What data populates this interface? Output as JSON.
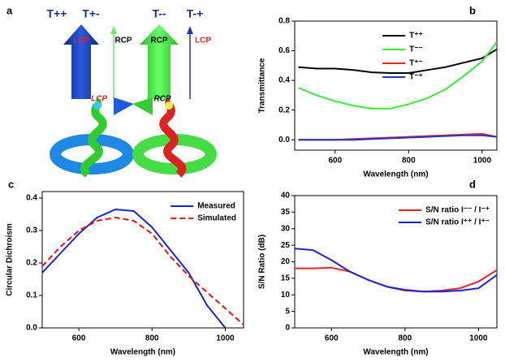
{
  "diagram": {
    "panel": "a",
    "headers": [
      "T++",
      "T+-",
      "T--",
      "T-+"
    ],
    "arrow_labels": [
      "LCP",
      "RCP",
      "RCP",
      "LCP"
    ],
    "helix_labels": [
      "LCP",
      "RCP"
    ]
  },
  "chart_data": [
    {
      "type": "line",
      "panel": "b",
      "xlabel": "Wavelength (nm)",
      "ylabel": "Transmittance",
      "x": [
        500,
        550,
        600,
        650,
        700,
        750,
        800,
        850,
        900,
        950,
        1000,
        1040
      ],
      "series": [
        {
          "name": "T⁺⁺",
          "color": "#000000",
          "values": [
            0.49,
            0.48,
            0.48,
            0.47,
            0.455,
            0.45,
            0.45,
            0.47,
            0.49,
            0.52,
            0.55,
            0.61
          ]
        },
        {
          "name": "T⁻⁻",
          "color": "#33ee33",
          "values": [
            0.35,
            0.3,
            0.26,
            0.23,
            0.21,
            0.21,
            0.24,
            0.28,
            0.34,
            0.43,
            0.53,
            0.66
          ]
        },
        {
          "name": "T⁺⁻",
          "color": "#ee2222",
          "values": [
            0,
            0,
            0,
            0.005,
            0.01,
            0.015,
            0.02,
            0.025,
            0.03,
            0.035,
            0.04,
            0.02
          ]
        },
        {
          "name": "T⁻⁺",
          "color": "#2233cc",
          "values": [
            0,
            0,
            0,
            0,
            0.005,
            0.01,
            0.015,
            0.02,
            0.025,
            0.03,
            0.03,
            0.02
          ]
        }
      ],
      "xlim": [
        490,
        1040
      ],
      "ylim": [
        -0.07,
        0.8
      ],
      "xticks": [
        600,
        800,
        1000
      ],
      "yticks": [
        {
          "value": 0,
          "label": "0.0"
        },
        0.2,
        0.4,
        0.6,
        0.8
      ],
      "legend": "upper center"
    },
    {
      "type": "line",
      "panel": "c",
      "xlabel": "Wavelength (nm)",
      "ylabel": "Circular Dichroism",
      "x": [
        500,
        550,
        600,
        650,
        700,
        750,
        800,
        850,
        900,
        950,
        1000,
        1050
      ],
      "series": [
        {
          "name": "Measured",
          "color": "#1a22dd",
          "line_style": "solid",
          "values": [
            0.17,
            0.23,
            0.29,
            0.34,
            0.365,
            0.36,
            0.31,
            0.24,
            0.17,
            0.07,
            0,
            null
          ]
        },
        {
          "name": "Simulated",
          "color": "#ee1111",
          "line_style": "dashed",
          "values": [
            0.19,
            0.25,
            0.3,
            0.33,
            0.34,
            0.33,
            0.29,
            0.22,
            0.16,
            0.11,
            0.06,
            0.01
          ]
        }
      ],
      "xlim": [
        500,
        1050
      ],
      "ylim": [
        0,
        0.42
      ],
      "xticks": [
        600,
        800,
        1000
      ],
      "yticks": [
        {
          "value": 0,
          "label": "0.0"
        },
        0.1,
        0.2,
        0.3,
        0.4
      ],
      "legend": "upper right"
    },
    {
      "type": "line",
      "panel": "d",
      "xlabel": "Wavelength (nm)",
      "ylabel": "S/N Ratio (dB)",
      "x": [
        500,
        550,
        600,
        650,
        700,
        750,
        800,
        850,
        900,
        950,
        1000,
        1050
      ],
      "series": [
        {
          "name": "S/N ratio I⁻⁻ / I⁻⁺",
          "color": "#ee2222",
          "values": [
            18,
            18,
            18.2,
            17,
            14.5,
            12.5,
            11.3,
            11,
            11.3,
            12,
            14,
            17.5
          ]
        },
        {
          "name": "S/N ratio I⁺⁺ / I⁺⁻",
          "color": "#1a22dd",
          "values": [
            24,
            23.5,
            20.5,
            17,
            14.5,
            12.5,
            11.5,
            11,
            11,
            11.3,
            12,
            16
          ]
        }
      ],
      "xlim": [
        500,
        1050
      ],
      "ylim": [
        0,
        40
      ],
      "xticks": [
        600,
        800,
        1000
      ],
      "yticks": [
        0,
        5,
        10,
        15,
        20,
        25,
        30,
        35,
        40
      ],
      "legend": "upper right"
    }
  ]
}
